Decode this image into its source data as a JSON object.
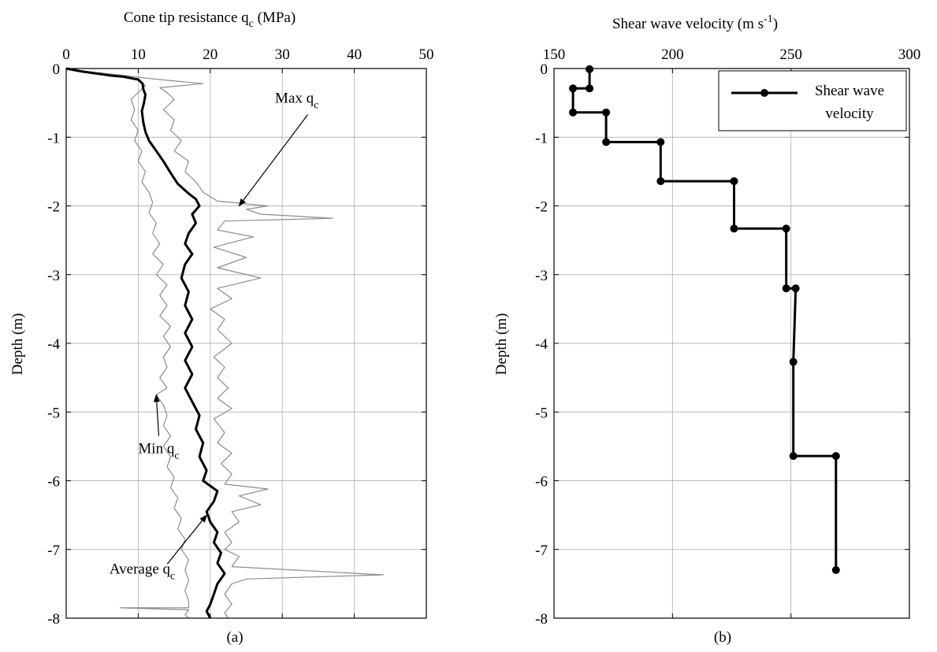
{
  "chart_data": [
    {
      "type": "line",
      "caption": "(a)",
      "title": "Cone tip resistance q",
      "title_sub": "c",
      "title_suffix": " (MPa)",
      "xlabel": "",
      "ylabel": "Depth (m)",
      "xlim": [
        0,
        50
      ],
      "ylim": [
        -8,
        0
      ],
      "xticks": [
        0,
        10,
        20,
        30,
        40,
        50
      ],
      "yticks": [
        0,
        -1,
        -2,
        -3,
        -4,
        -5,
        -6,
        -7,
        -8
      ],
      "x_axis_position": "top",
      "grid": true,
      "series": [
        {
          "name": "Max q",
          "name_sub": "c",
          "style": "thin-gray",
          "color": "#8c8c8c",
          "points": [
            [
              0.5,
              -0.02
            ],
            [
              8,
              -0.1
            ],
            [
              12,
              -0.15
            ],
            [
              19,
              -0.22
            ],
            [
              13,
              -0.28
            ],
            [
              14,
              -0.35
            ],
            [
              15,
              -0.45
            ],
            [
              13.5,
              -0.6
            ],
            [
              15,
              -0.75
            ],
            [
              14.5,
              -0.9
            ],
            [
              16,
              -1.05
            ],
            [
              15,
              -1.2
            ],
            [
              17,
              -1.35
            ],
            [
              16.5,
              -1.5
            ],
            [
              18,
              -1.65
            ],
            [
              19,
              -1.8
            ],
            [
              21,
              -1.93
            ],
            [
              28,
              -2.0
            ],
            [
              25,
              -2.05
            ],
            [
              27,
              -2.12
            ],
            [
              37,
              -2.18
            ],
            [
              22,
              -2.22
            ],
            [
              21,
              -2.35
            ],
            [
              26,
              -2.45
            ],
            [
              20.5,
              -2.6
            ],
            [
              25,
              -2.75
            ],
            [
              21,
              -2.9
            ],
            [
              27,
              -3.05
            ],
            [
              21,
              -3.2
            ],
            [
              23,
              -3.35
            ],
            [
              20,
              -3.5
            ],
            [
              22,
              -3.65
            ],
            [
              21,
              -3.8
            ],
            [
              23,
              -4.0
            ],
            [
              20.5,
              -4.2
            ],
            [
              22,
              -4.35
            ],
            [
              21,
              -4.5
            ],
            [
              22.5,
              -4.65
            ],
            [
              21,
              -4.8
            ],
            [
              23,
              -4.95
            ],
            [
              20.5,
              -5.1
            ],
            [
              22,
              -5.3
            ],
            [
              21,
              -5.45
            ],
            [
              23,
              -5.6
            ],
            [
              21.5,
              -5.75
            ],
            [
              23,
              -5.9
            ],
            [
              22,
              -6.05
            ],
            [
              28,
              -6.12
            ],
            [
              24,
              -6.22
            ],
            [
              27,
              -6.35
            ],
            [
              23,
              -6.45
            ],
            [
              24,
              -6.6
            ],
            [
              22,
              -6.75
            ],
            [
              23,
              -6.9
            ],
            [
              22,
              -7.0
            ],
            [
              24,
              -7.1
            ],
            [
              23,
              -7.25
            ],
            [
              44,
              -7.37
            ],
            [
              25,
              -7.43
            ],
            [
              23,
              -7.5
            ],
            [
              22,
              -7.65
            ],
            [
              23,
              -7.8
            ],
            [
              22,
              -7.92
            ],
            [
              22.5,
              -8.0
            ]
          ]
        },
        {
          "name": "Min q",
          "name_sub": "c",
          "style": "thin-gray",
          "color": "#8c8c8c",
          "points": [
            [
              0,
              -0.01
            ],
            [
              5,
              -0.08
            ],
            [
              10,
              -0.15
            ],
            [
              11,
              -0.25
            ],
            [
              10,
              -0.35
            ],
            [
              9,
              -0.45
            ],
            [
              9.5,
              -0.6
            ],
            [
              9,
              -0.75
            ],
            [
              10,
              -0.9
            ],
            [
              9.5,
              -1.05
            ],
            [
              10.5,
              -1.2
            ],
            [
              10,
              -1.35
            ],
            [
              11,
              -1.5
            ],
            [
              10.5,
              -1.65
            ],
            [
              11.5,
              -1.8
            ],
            [
              12,
              -1.95
            ],
            [
              11.5,
              -2.1
            ],
            [
              12.5,
              -2.25
            ],
            [
              12,
              -2.4
            ],
            [
              13,
              -2.55
            ],
            [
              12,
              -2.7
            ],
            [
              13.5,
              -2.85
            ],
            [
              12.5,
              -3.0
            ],
            [
              14,
              -3.15
            ],
            [
              13,
              -3.3
            ],
            [
              14,
              -3.45
            ],
            [
              13,
              -3.6
            ],
            [
              14.5,
              -3.75
            ],
            [
              13.5,
              -3.9
            ],
            [
              14.5,
              -4.05
            ],
            [
              13.5,
              -4.2
            ],
            [
              14,
              -4.35
            ],
            [
              13,
              -4.5
            ],
            [
              14,
              -4.65
            ],
            [
              12.5,
              -4.75
            ],
            [
              13.5,
              -4.9
            ],
            [
              14,
              -5.05
            ],
            [
              13.5,
              -5.2
            ],
            [
              14.5,
              -5.35
            ],
            [
              13.5,
              -5.5
            ],
            [
              14.5,
              -5.65
            ],
            [
              14,
              -5.8
            ],
            [
              15,
              -5.95
            ],
            [
              14.5,
              -6.1
            ],
            [
              15.5,
              -6.25
            ],
            [
              15,
              -6.4
            ],
            [
              16,
              -6.55
            ],
            [
              15.5,
              -6.7
            ],
            [
              16.5,
              -6.85
            ],
            [
              16,
              -7.0
            ],
            [
              17,
              -7.15
            ],
            [
              16.5,
              -7.3
            ],
            [
              17,
              -7.45
            ],
            [
              16.5,
              -7.6
            ],
            [
              17,
              -7.75
            ],
            [
              17,
              -7.85
            ],
            [
              7.5,
              -7.85
            ],
            [
              17,
              -7.88
            ],
            [
              16.5,
              -7.95
            ],
            [
              17,
              -8.0
            ]
          ]
        },
        {
          "name": "Average q",
          "name_sub": "c",
          "style": "thick-black",
          "color": "#000000",
          "points": [
            [
              0,
              0.0
            ],
            [
              2,
              -0.04
            ],
            [
              4,
              -0.07
            ],
            [
              6,
              -0.1
            ],
            [
              8,
              -0.12
            ],
            [
              10,
              -0.16
            ],
            [
              10.6,
              -0.22
            ],
            [
              10.7,
              -0.3
            ],
            [
              11,
              -0.38
            ],
            [
              10.8,
              -0.5
            ],
            [
              10.5,
              -0.62
            ],
            [
              10.7,
              -0.78
            ],
            [
              11,
              -0.92
            ],
            [
              11.5,
              -1.05
            ],
            [
              12.5,
              -1.2
            ],
            [
              13.5,
              -1.35
            ],
            [
              14.5,
              -1.52
            ],
            [
              15.5,
              -1.68
            ],
            [
              17,
              -1.82
            ],
            [
              18,
              -1.9
            ],
            [
              18.5,
              -2.0
            ],
            [
              17.5,
              -2.12
            ],
            [
              18,
              -2.25
            ],
            [
              17,
              -2.4
            ],
            [
              16.5,
              -2.55
            ],
            [
              17.5,
              -2.7
            ],
            [
              16.5,
              -2.85
            ],
            [
              16,
              -3.05
            ],
            [
              17,
              -3.25
            ],
            [
              16.5,
              -3.45
            ],
            [
              17.5,
              -3.65
            ],
            [
              16.5,
              -3.85
            ],
            [
              17.5,
              -4.05
            ],
            [
              16.5,
              -4.25
            ],
            [
              17.5,
              -4.45
            ],
            [
              16.5,
              -4.65
            ],
            [
              17.5,
              -4.85
            ],
            [
              18.5,
              -5.05
            ],
            [
              18,
              -5.25
            ],
            [
              19,
              -5.45
            ],
            [
              18.5,
              -5.65
            ],
            [
              19.5,
              -5.85
            ],
            [
              19,
              -6.0
            ],
            [
              21,
              -6.15
            ],
            [
              20.5,
              -6.3
            ],
            [
              19.5,
              -6.45
            ],
            [
              20,
              -6.6
            ],
            [
              21,
              -6.75
            ],
            [
              20.5,
              -6.9
            ],
            [
              21.5,
              -7.05
            ],
            [
              21,
              -7.2
            ],
            [
              22,
              -7.35
            ],
            [
              21,
              -7.5
            ],
            [
              20.5,
              -7.65
            ],
            [
              20,
              -7.8
            ],
            [
              19.5,
              -7.9
            ],
            [
              20,
              -8.0
            ]
          ]
        }
      ],
      "annotations": [
        {
          "text": "Max q",
          "sub": "c",
          "target": [
            24,
            -2.0
          ],
          "label_at": [
            29,
            -0.5
          ]
        },
        {
          "text": "Min q",
          "sub": "c",
          "target": [
            12.5,
            -4.75
          ],
          "label_at": [
            10,
            -5.6
          ]
        },
        {
          "text": "Average q",
          "sub": "c",
          "target": [
            19.5,
            -6.5
          ],
          "label_at": [
            6,
            -7.35
          ]
        }
      ]
    },
    {
      "type": "line",
      "caption": "(b)",
      "title": "Shear wave velocity (m s",
      "title_sup": "-1",
      "title_suffix": ")",
      "xlabel": "",
      "ylabel": "Depth (m)",
      "xlim": [
        150,
        300
      ],
      "ylim": [
        -8,
        0
      ],
      "xticks": [
        150,
        200,
        250,
        300
      ],
      "yticks": [
        0,
        -1,
        -2,
        -3,
        -4,
        -5,
        -6,
        -7,
        -8
      ],
      "x_axis_position": "top",
      "grid": true,
      "legend": {
        "position": "top-right",
        "label_line1": "Shear wave",
        "label_line2": "velocity"
      },
      "series": [
        {
          "name": "Shear wave velocity",
          "style": "thick-black-markers",
          "color": "#000000",
          "points": [
            [
              165,
              -0.01
            ],
            [
              165,
              -0.29
            ],
            [
              158,
              -0.29
            ],
            [
              158,
              -0.64
            ],
            [
              172,
              -0.64
            ],
            [
              172,
              -1.07
            ],
            [
              195,
              -1.07
            ],
            [
              195,
              -1.64
            ],
            [
              226,
              -1.64
            ],
            [
              226,
              -2.33
            ],
            [
              248,
              -2.33
            ],
            [
              248,
              -3.2
            ],
            [
              252,
              -3.2
            ],
            [
              251,
              -4.27
            ],
            [
              251,
              -5.64
            ],
            [
              269,
              -5.64
            ],
            [
              269,
              -7.3
            ]
          ],
          "markers": [
            [
              165,
              -0.01
            ],
            [
              165,
              -0.29
            ],
            [
              158,
              -0.29
            ],
            [
              158,
              -0.64
            ],
            [
              172,
              -0.64
            ],
            [
              172,
              -1.07
            ],
            [
              195,
              -1.07
            ],
            [
              195,
              -1.64
            ],
            [
              226,
              -1.64
            ],
            [
              226,
              -2.33
            ],
            [
              248,
              -2.33
            ],
            [
              248,
              -3.2
            ],
            [
              252,
              -3.2
            ],
            [
              251,
              -4.27
            ],
            [
              251,
              -5.64
            ],
            [
              269,
              -5.64
            ],
            [
              269,
              -7.3
            ]
          ]
        }
      ]
    }
  ]
}
